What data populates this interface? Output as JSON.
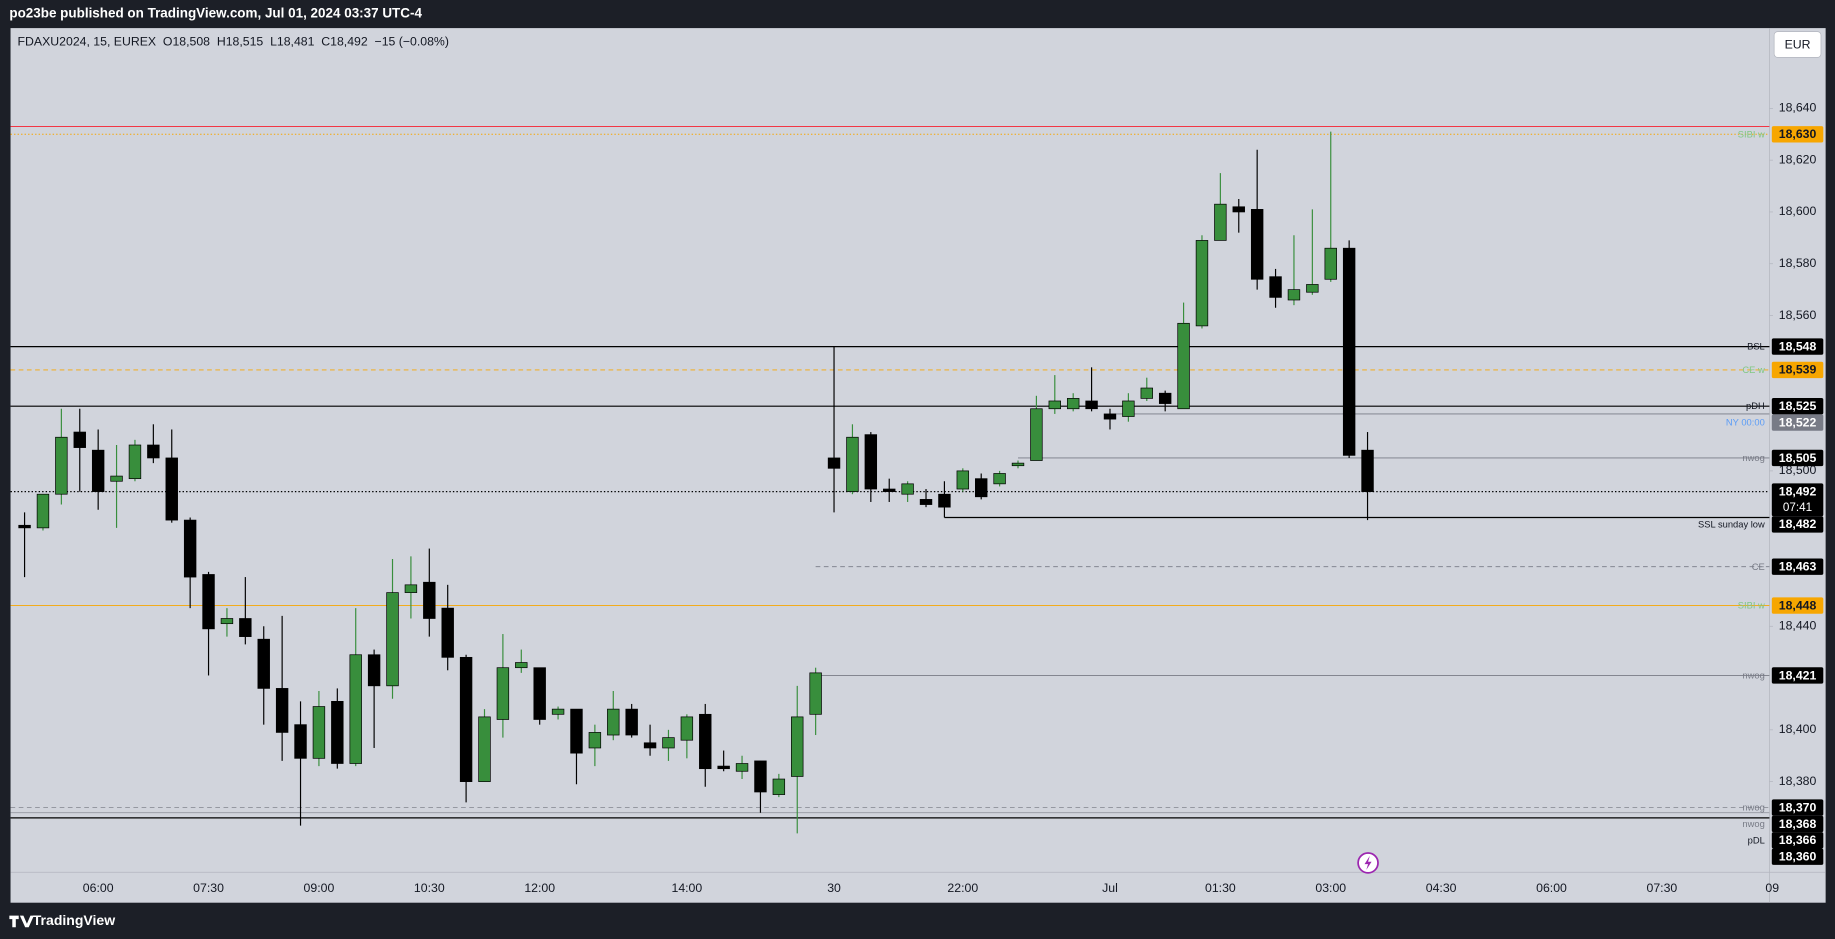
{
  "header": {
    "published": "po23be published on TradingView.com, Jul 01, 2024 03:37 UTC-4",
    "legend": "FDAXU2024, 15, EUREX  O18,508  H18,515  L18,481  C18,492  −15 (−0.08%)",
    "currency": "EUR"
  },
  "footer": {
    "brand": "TradingView"
  },
  "chart_data": {
    "type": "candlestick",
    "up_color": "#388e3c",
    "down_color": "#000000",
    "grid": false,
    "categories": [
      null,
      null,
      null,
      null,
      "06:00",
      null,
      null,
      null,
      null,
      null,
      "07:30",
      null,
      null,
      null,
      null,
      null,
      "09:00",
      null,
      null,
      null,
      null,
      null,
      "10:30",
      null,
      null,
      null,
      null,
      null,
      "12:00",
      null,
      null,
      null,
      null,
      null,
      null,
      null,
      "14:00",
      null,
      null,
      null,
      null,
      null,
      null,
      null,
      "30",
      null,
      null,
      null,
      null,
      null,
      null,
      "22:00",
      null,
      null,
      null,
      null,
      null,
      null,
      null,
      "Jul",
      null,
      null,
      null,
      null,
      null,
      "01:30",
      null,
      null,
      null,
      null,
      null,
      "03:00",
      null,
      null,
      null,
      null,
      null,
      "04:30",
      null,
      null,
      null,
      null,
      null,
      "06:00",
      null,
      null,
      null,
      null,
      null,
      "07:30",
      null,
      null,
      null,
      null,
      null,
      "09"
    ],
    "open": [
      18479,
      18478,
      18491,
      18515,
      18508,
      18496,
      18497,
      18510,
      18505,
      18481,
      18460,
      18441,
      18443,
      18435,
      18416,
      18402,
      18389,
      18411,
      18387,
      18429,
      18417,
      18453,
      18457,
      18447,
      18428,
      18380,
      18404,
      18424,
      18424,
      18406,
      18408,
      18393,
      18398,
      18408,
      18395,
      18393,
      18396,
      18406,
      18386,
      18384,
      18388,
      18375,
      18382,
      18406,
      18505,
      18492,
      18514,
      18493,
      18491,
      18489,
      18491,
      18493,
      18497,
      18495,
      18502,
      18504,
      18524,
      18524,
      18527,
      18522,
      18521,
      18528,
      18530,
      18524,
      18556,
      18589,
      18602,
      18601,
      18575,
      18566,
      18569,
      18574,
      18586,
      18508,
      null,
      null,
      null,
      null,
      null,
      null,
      null,
      null,
      null,
      null,
      null,
      null,
      null,
      null,
      null,
      null,
      null,
      null,
      null,
      null,
      null,
      null
    ],
    "high": [
      18484,
      18491,
      18524,
      18524,
      18516,
      18510,
      18512,
      18518,
      18516,
      18482,
      18461,
      18447,
      18459,
      18440,
      18444,
      18411,
      18415,
      18416,
      18447,
      18431,
      18466,
      18467,
      18470,
      18456,
      18429,
      18408,
      18437,
      18431,
      18424,
      18409,
      18408,
      18402,
      18415,
      18410,
      18402,
      18400,
      18406,
      18410,
      18392,
      18390,
      18388,
      18383,
      18417,
      18424,
      18548,
      18518,
      18515,
      18497,
      18496,
      18493,
      18496,
      18501,
      18499,
      18500,
      18504,
      18529,
      18537,
      18530,
      18540,
      18524,
      18530,
      18536,
      18531,
      18565,
      18591,
      18615,
      18605,
      18624,
      18578,
      18591,
      18601,
      18631,
      18589,
      18515,
      null,
      null,
      null,
      null,
      null,
      null,
      null,
      null,
      null,
      null,
      null,
      null,
      null,
      null,
      null,
      null,
      null,
      null,
      null,
      null,
      null,
      null
    ],
    "low": [
      18459,
      18477,
      18487,
      18492,
      18485,
      18478,
      18496,
      18503,
      18480,
      18447,
      18421,
      18436,
      18433,
      18402,
      18388,
      18363,
      18386,
      18385,
      18386,
      18393,
      18412,
      18443,
      18436,
      18423,
      18372,
      18380,
      18397,
      18422,
      18402,
      18404,
      18379,
      18386,
      18396,
      18397,
      18390,
      18388,
      18389,
      18378,
      18384,
      18381,
      18368,
      18374,
      18360,
      18398,
      18484,
      18491,
      18488,
      18488,
      18488,
      18486,
      18482,
      18492,
      18489,
      18494,
      18501,
      18504,
      18522,
      18523,
      18523,
      18516,
      18519,
      18527,
      18523,
      18524,
      18555,
      18589,
      18592,
      18570,
      18563,
      18564,
      18568,
      18573,
      18505,
      18481,
      null,
      null,
      null,
      null,
      null,
      null,
      null,
      null,
      null,
      null,
      null,
      null,
      null,
      null,
      null,
      null,
      null,
      null,
      null,
      null,
      null,
      null
    ],
    "close": [
      18478,
      18491,
      18513,
      18509,
      18492,
      18498,
      18510,
      18505,
      18481,
      18459,
      18439,
      18443,
      18436,
      18416,
      18399,
      18389,
      18409,
      18387,
      18429,
      18417,
      18453,
      18456,
      18443,
      18428,
      18380,
      18405,
      18424,
      18426,
      18404,
      18408,
      18391,
      18399,
      18408,
      18398,
      18393,
      18397,
      18405,
      18385,
      18385,
      18387,
      18376,
      18381,
      18405,
      18422,
      18501,
      18513,
      18493,
      18492,
      18495,
      18487,
      18486,
      18500,
      18490,
      18499,
      18503,
      18524,
      18527,
      18528,
      18524,
      18520,
      18527,
      18532,
      18526,
      18557,
      18589,
      18603,
      18600,
      18574,
      18567,
      18570,
      18572,
      18586,
      18506,
      18492,
      null,
      null,
      null,
      null,
      null,
      null,
      null,
      null,
      null,
      null,
      null,
      null,
      null,
      null,
      null,
      null,
      null,
      null,
      null,
      null,
      null,
      null
    ],
    "ylim": [
      18345,
      18671
    ],
    "yticks": [
      {
        "value": 18640,
        "label": "18,640"
      },
      {
        "value": 18620,
        "label": "18,620"
      },
      {
        "value": 18600,
        "label": "18,600"
      },
      {
        "value": 18580,
        "label": "18,580"
      },
      {
        "value": 18560,
        "label": "18,560"
      },
      {
        "value": 18500,
        "label": "18,500"
      },
      {
        "value": 18440,
        "label": "18,440"
      },
      {
        "value": 18400,
        "label": "18,400"
      },
      {
        "value": 18380,
        "label": "18,380"
      }
    ],
    "levels": [
      {
        "value": 18633,
        "color": "#f23645",
        "style": "solid"
      },
      {
        "value": 18630,
        "value_label": "18,630",
        "name": "SIBI w",
        "color": "#f7a600",
        "style": "dotted",
        "box": "#f7a600",
        "box_text": "#131722",
        "name_color": "#81c784"
      },
      {
        "value": 18548,
        "value_label": "18,548",
        "name": "BSL",
        "color": "#000000",
        "style": "solid",
        "box": "#000000",
        "box_text": "#ffffff",
        "name_color": "#131722"
      },
      {
        "value": 18539,
        "value_label": "18,539",
        "name": "CE w",
        "color": "#f7a600",
        "style": "dashed",
        "box": "#f7a600",
        "box_text": "#131722",
        "name_color": "#81c784"
      },
      {
        "value": 18525,
        "value_label": "18,525",
        "name": "pDH",
        "color": "#000000",
        "style": "solid",
        "box": "#000000",
        "box_text": "#ffffff",
        "name_color": "#131722"
      },
      {
        "value": 18522,
        "value_label": "18,522",
        "name": "NY 00:00",
        "color": "#787b86",
        "style": "solid",
        "from": 59,
        "box": "#787b86",
        "box_text": "#ffffff",
        "name_color": "#5b9cf6"
      },
      {
        "value": 18505,
        "value_label": "18,505",
        "name": "nwog",
        "color": "#787b86",
        "style": "solid",
        "from": 54,
        "box": "#000000",
        "box_text": "#ffffff",
        "name_color": "#787b86"
      },
      {
        "value": 18492,
        "value_label": "18,492",
        "countdown": "07:41",
        "color": "#000000",
        "style": "dotted",
        "box": "#000000",
        "box_text": "#ffffff"
      },
      {
        "value": 18482,
        "value_label": "18,482",
        "name": "SSL sunday low",
        "color": "#000000",
        "style": "solid",
        "from": 50,
        "box": "#000000",
        "box_text": "#ffffff",
        "name_color": "#131722"
      },
      {
        "value": 18463,
        "value_label": "18,463",
        "name": "CE",
        "color": "#787b86",
        "style": "dashed",
        "from": 43,
        "box": "#000000",
        "box_text": "#ffffff",
        "name_color": "#787b86"
      },
      {
        "value": 18448,
        "value_label": "18,448",
        "name": "SIBI w",
        "color": "#f7a600",
        "style": "solid",
        "box": "#f7a600",
        "box_text": "#131722",
        "name_color": "#81c784"
      },
      {
        "value": 18421,
        "value_label": "18,421",
        "name": "nwog",
        "color": "#787b86",
        "style": "solid",
        "from": 43,
        "box": "#000000",
        "box_text": "#ffffff",
        "name_color": "#787b86"
      },
      {
        "value": 18370,
        "value_label": "18,370",
        "name": "nwog",
        "color": "#9598a1",
        "style": "dashed",
        "box": "#000000",
        "box_text": "#ffffff",
        "name_color": "#787b86"
      },
      {
        "value": 18368,
        "value_label": "18,368",
        "name": "nwog",
        "color": "#9598a1",
        "style": "solid",
        "box": "#000000",
        "box_text": "#ffffff",
        "name_color": "#787b86"
      },
      {
        "value": 18366,
        "value_label": "18,366",
        "name": "pDL",
        "color": "#000000",
        "style": "solid",
        "box": "#000000",
        "box_text": "#ffffff",
        "name_color": "#131722"
      },
      {
        "value": 18360,
        "value_label": "18,360",
        "box": "#000000",
        "box_text": "#ffffff"
      }
    ]
  }
}
